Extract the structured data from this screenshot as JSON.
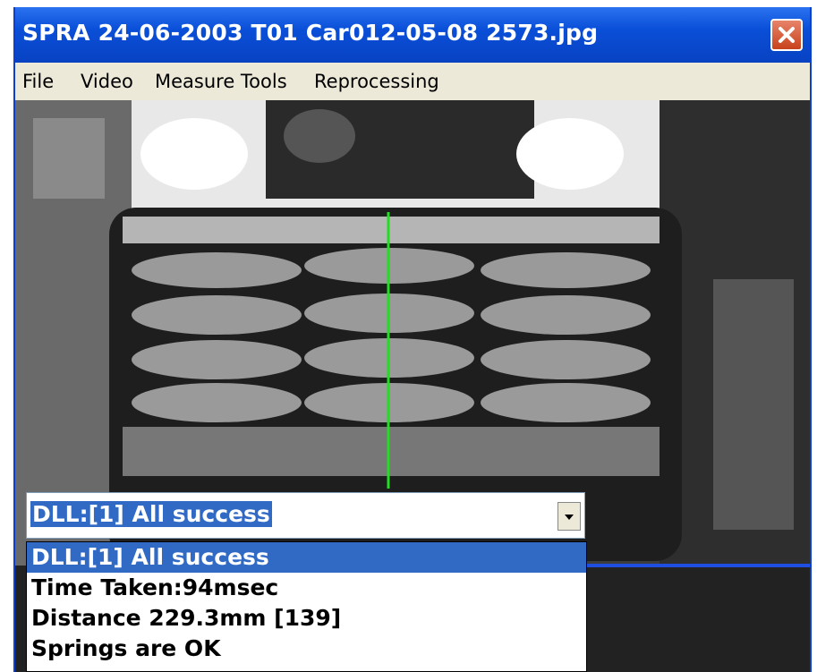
{
  "window": {
    "title": "SPRA 24-06-2003 T01 Car012-05-08 2573.jpg"
  },
  "menu": [
    "File",
    "Video",
    "Measure Tools",
    "Reprocessing"
  ],
  "combo": {
    "selected": "DLL:[1] All success"
  },
  "list": [
    "DLL:[1] All success",
    "Time Taken:94msec",
    "Distance 229.3mm [139]",
    "Springs are OK"
  ]
}
